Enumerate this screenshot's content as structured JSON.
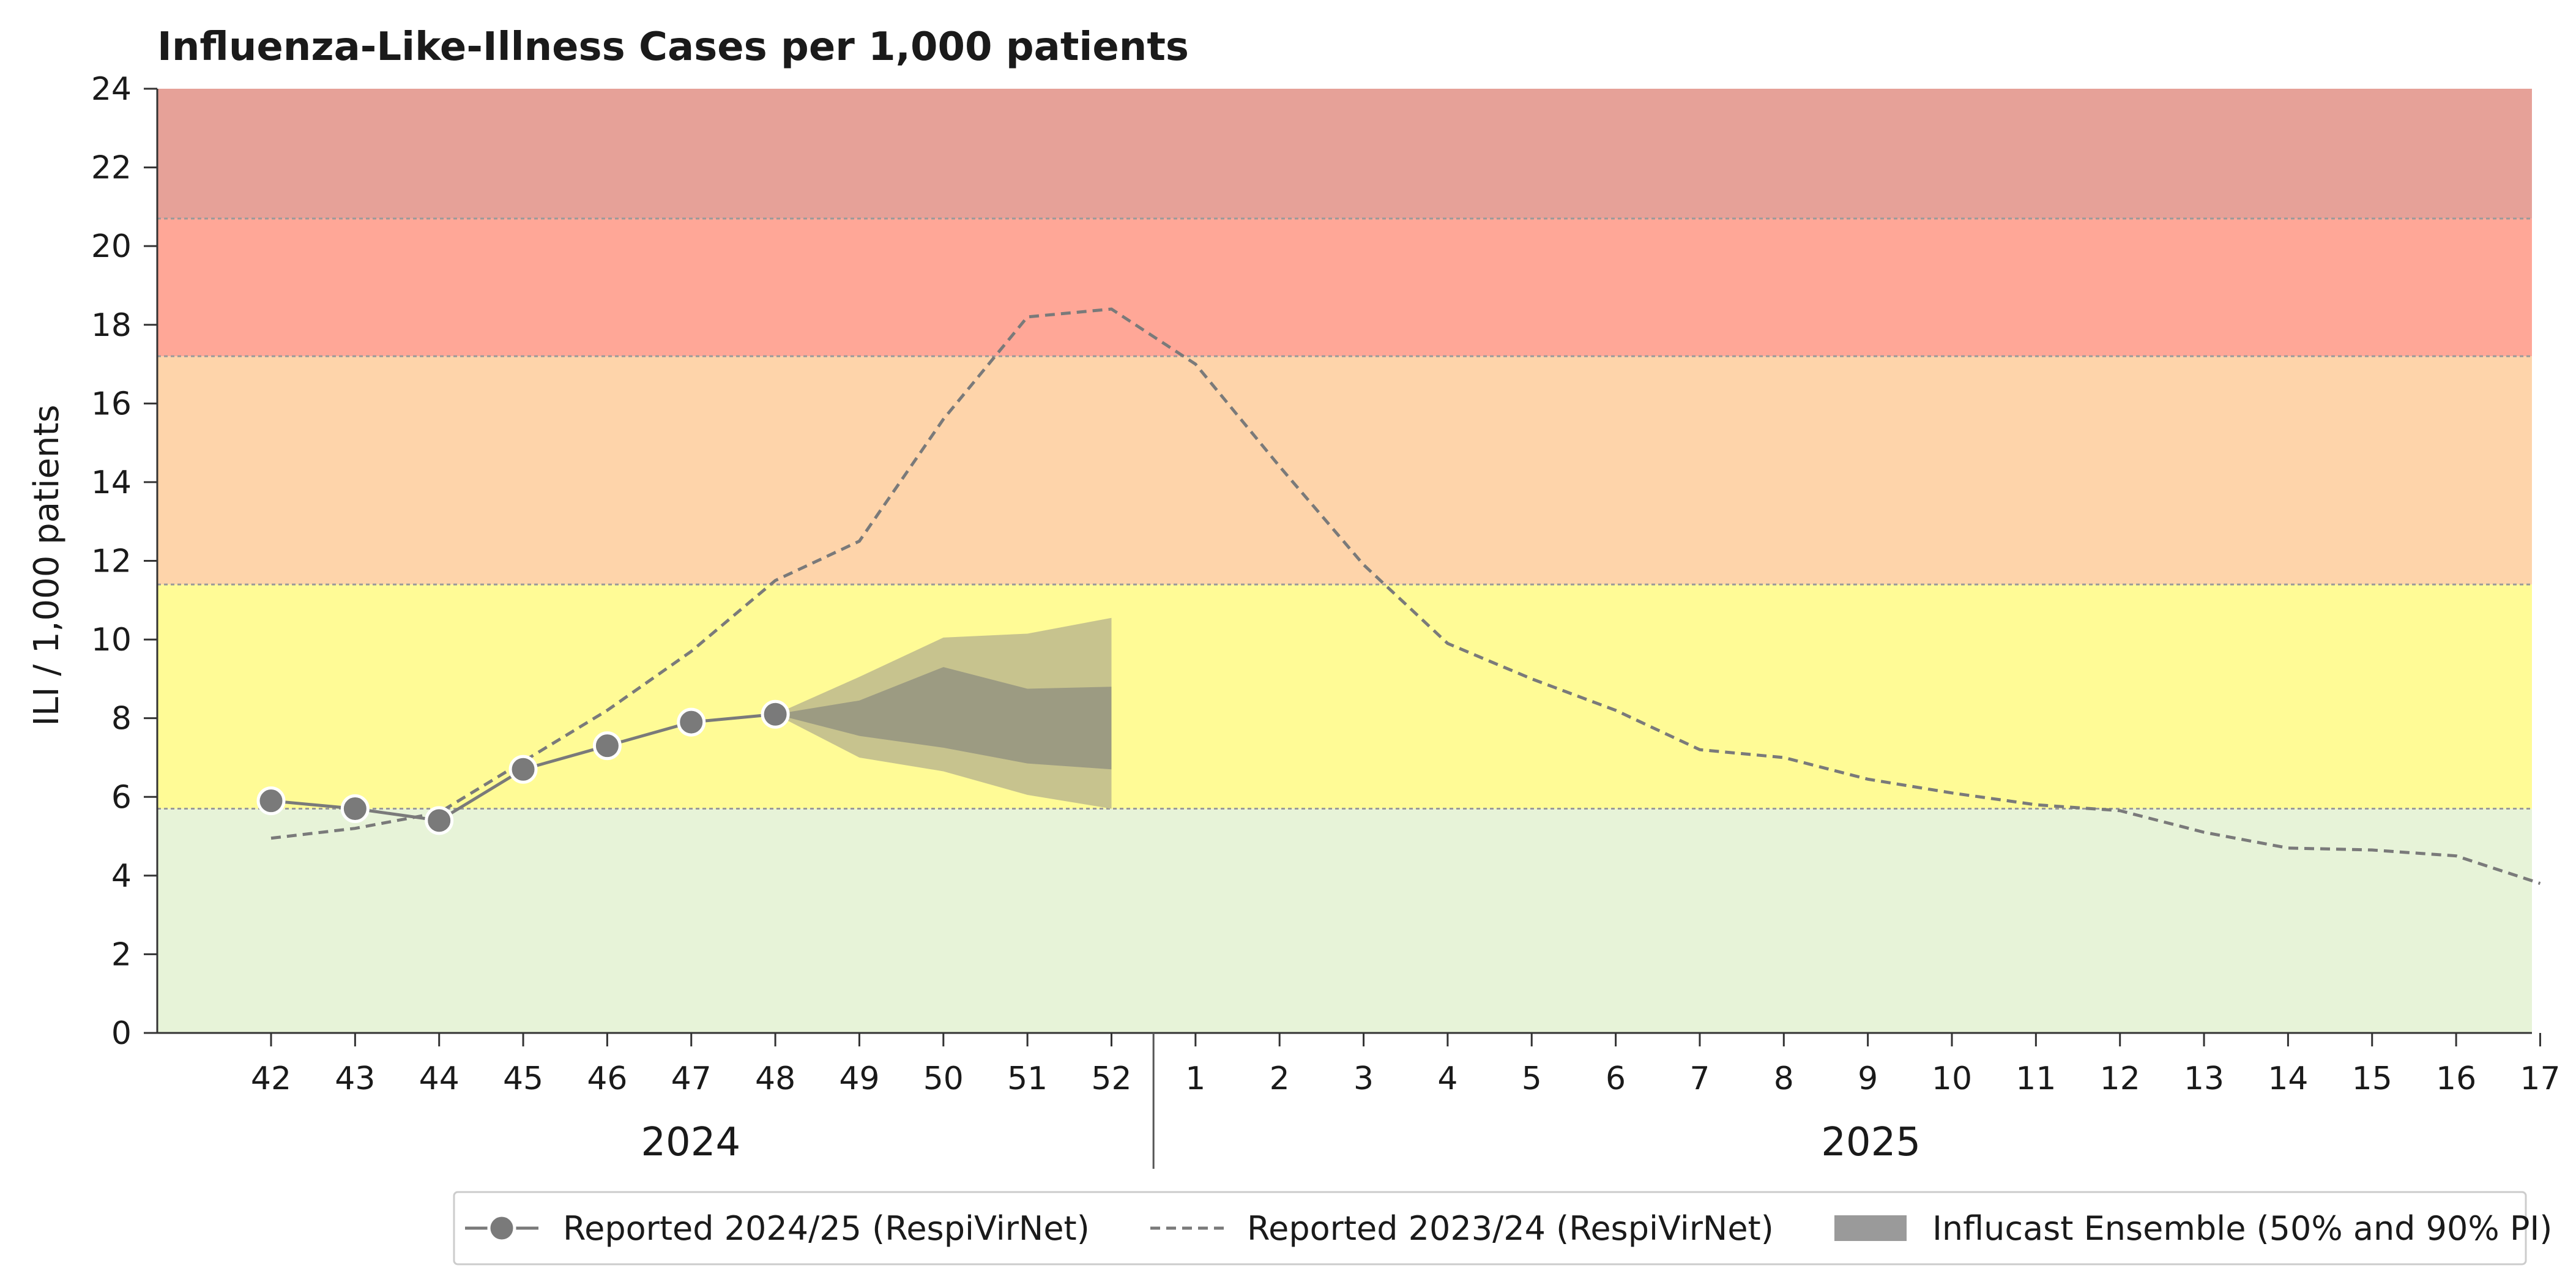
{
  "chart_data": {
    "type": "line",
    "title": "Influenza-Like-Illness Cases per 1,000 patients",
    "ylabel": "ILI / 1,000 patients",
    "xlabel": "",
    "ylim": [
      0,
      24
    ],
    "y_ticks": [
      "0",
      "2",
      "4",
      "6",
      "8",
      "10",
      "12",
      "14",
      "16",
      "18",
      "20",
      "22",
      "24"
    ],
    "x_ticks": [
      "42",
      "43",
      "44",
      "45",
      "46",
      "47",
      "48",
      "49",
      "50",
      "51",
      "52",
      "1",
      "2",
      "3",
      "4",
      "5",
      "6",
      "7",
      "8",
      "9",
      "10",
      "11",
      "12",
      "13",
      "14",
      "15",
      "16",
      "17"
    ],
    "year_labels": [
      "2024",
      "2025"
    ],
    "grid": false,
    "legend_position": "bottom-right",
    "intensity_bands": [
      {
        "from": 0,
        "to": 5.7,
        "color": "#e7f3d8"
      },
      {
        "from": 5.7,
        "to": 11.4,
        "color": "#fffb96"
      },
      {
        "from": 11.4,
        "to": 17.2,
        "color": "#fed4aa"
      },
      {
        "from": 17.2,
        "to": 20.7,
        "color": "#ffa797"
      },
      {
        "from": 20.7,
        "to": 24,
        "color": "#e6a198"
      }
    ],
    "series": [
      {
        "name": "Reported 2024/25 (RespiVirNet)",
        "style": "solid-markers",
        "color": "#7a7a7a",
        "values": [
          5.9,
          5.7,
          5.4,
          6.7,
          7.3,
          7.9,
          8.1
        ]
      },
      {
        "name": "Reported 2023/24 (RespiVirNet)",
        "style": "dashed",
        "color": "#7a7a7a",
        "values": [
          4.95,
          5.2,
          5.6,
          6.9,
          8.2,
          9.7,
          11.5,
          12.5,
          15.6,
          18.2,
          18.4,
          17.0,
          14.4,
          11.9,
          9.9,
          9.0,
          8.2,
          7.2,
          7.0,
          6.45,
          6.1,
          5.8,
          5.65,
          5.1,
          4.7,
          4.65,
          4.5,
          3.8
        ]
      }
    ],
    "forecast": {
      "name": "Influcast Ensemble (50% and 90% PI)",
      "x_start_index": 6,
      "pi90_upper": [
        8.1,
        9.05,
        10.05,
        10.15,
        10.55
      ],
      "pi90_lower": [
        8.1,
        7.0,
        6.65,
        6.05,
        5.7
      ],
      "pi50_upper": [
        8.1,
        8.45,
        9.3,
        8.75,
        8.8
      ],
      "pi50_lower": [
        8.1,
        7.55,
        7.25,
        6.85,
        6.7
      ],
      "color_90": "#c7c38e",
      "color_50": "#9c9b82"
    },
    "legend_swatch_color": "#9a9a9a"
  }
}
